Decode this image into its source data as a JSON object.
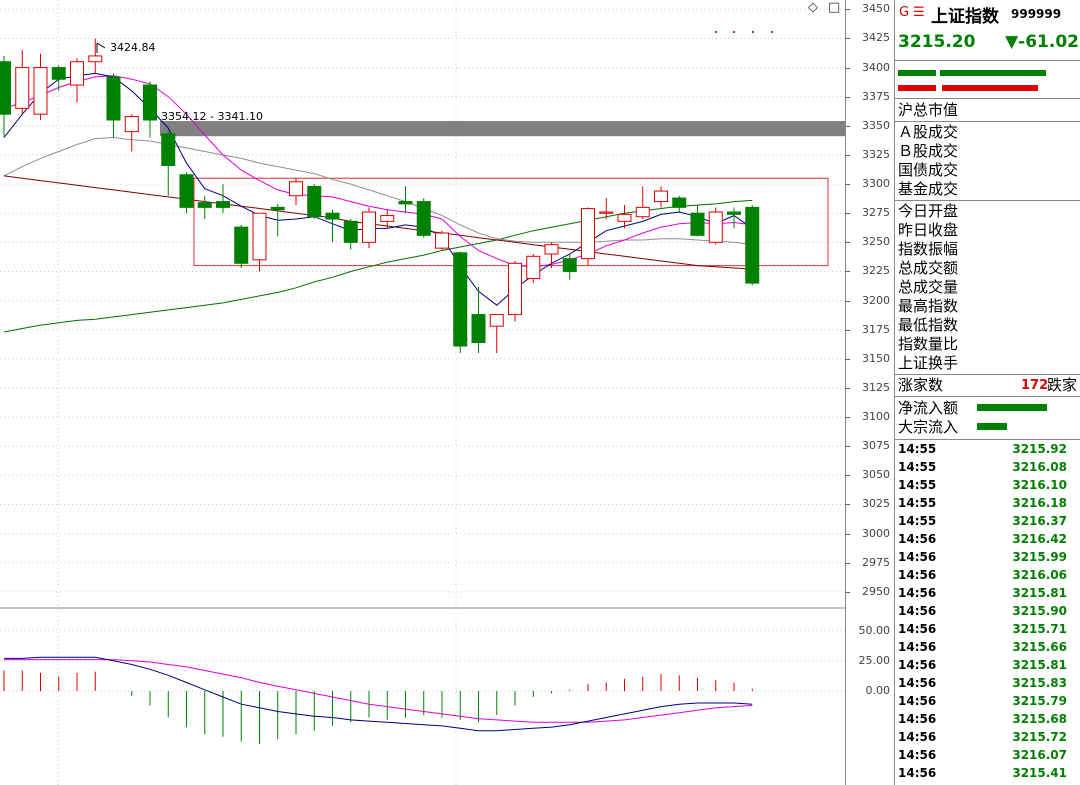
{
  "header": {
    "g_mark": "G",
    "menu_mark": "☰",
    "index_name": "上证指数",
    "index_code": "999999",
    "price": "3215.20",
    "change": "▼-61.02",
    "colors": {
      "up": "#e00000",
      "down": "#008000"
    }
  },
  "chart_controls": {
    "diamond": "◇",
    "square": "□"
  },
  "annotations": {
    "high_label": "3424.84",
    "range_label": "3354.12 - 3341.10"
  },
  "price_axis": [
    "3450",
    "3425",
    "3400",
    "3375",
    "3350",
    "3325",
    "3300",
    "3275",
    "3250",
    "3225",
    "3200",
    "3175",
    "3150",
    "3125",
    "3100",
    "3075",
    "3050",
    "3025",
    "3000",
    "2975",
    "2950"
  ],
  "indicator_axis": [
    "50.00",
    "25.00",
    "0.00"
  ],
  "info_labels": {
    "market_cap": "沪总市值",
    "a_turnover": "Ａ股成交",
    "b_turnover": "Ｂ股成交",
    "bond_turnover": "国债成交",
    "fund_turnover": "基金成交",
    "today_open": "今日开盘",
    "prev_close": "昨日收盘",
    "amplitude": "指数振幅",
    "total_amount": "总成交额",
    "total_volume": "总成交量",
    "high": "最高指数",
    "low": "最低指数",
    "volume_ratio": "指数量比",
    "turnover_rate": "上证换手"
  },
  "breadth": {
    "up_label": "涨家数",
    "down_count": "172",
    "down_label": "跌家"
  },
  "flow": {
    "net_inflow": "净流入额",
    "net_inflow_level": 0.7,
    "block_inflow": "大宗流入",
    "block_inflow_level": 0.3
  },
  "ticks": [
    {
      "time": "14:55",
      "value": "3215.92"
    },
    {
      "time": "14:55",
      "value": "3216.08"
    },
    {
      "time": "14:55",
      "value": "3216.10"
    },
    {
      "time": "14:55",
      "value": "3216.18"
    },
    {
      "time": "14:55",
      "value": "3216.37"
    },
    {
      "time": "14:56",
      "value": "3216.42"
    },
    {
      "time": "14:56",
      "value": "3215.99"
    },
    {
      "time": "14:56",
      "value": "3216.06"
    },
    {
      "time": "14:56",
      "value": "3215.81"
    },
    {
      "time": "14:56",
      "value": "3215.90"
    },
    {
      "time": "14:56",
      "value": "3215.71"
    },
    {
      "time": "14:56",
      "value": "3215.66"
    },
    {
      "time": "14:56",
      "value": "3215.81"
    },
    {
      "time": "14:56",
      "value": "3215.83"
    },
    {
      "time": "14:56",
      "value": "3215.79"
    },
    {
      "time": "14:56",
      "value": "3215.68"
    },
    {
      "time": "14:56",
      "value": "3215.72"
    },
    {
      "time": "14:56",
      "value": "3216.07"
    },
    {
      "time": "14:56",
      "value": "3215.41"
    }
  ],
  "chart_data": {
    "type": "candlestick",
    "y_range": [
      2937,
      3458
    ],
    "resistance_band": [
      3341.1,
      3354.12
    ],
    "box_range": [
      3230,
      3305
    ],
    "candles": [
      {
        "o": 3405,
        "h": 3410,
        "l": 3340,
        "c": 3360
      },
      {
        "o": 3365,
        "h": 3415,
        "l": 3360,
        "c": 3400
      },
      {
        "o": 3360,
        "h": 3412,
        "l": 3355,
        "c": 3400
      },
      {
        "o": 3400,
        "h": 3402,
        "l": 3380,
        "c": 3390
      },
      {
        "o": 3385,
        "h": 3408,
        "l": 3370,
        "c": 3405
      },
      {
        "o": 3405,
        "h": 3425,
        "l": 3395,
        "c": 3410
      },
      {
        "o": 3392,
        "h": 3395,
        "l": 3340,
        "c": 3355
      },
      {
        "o": 3345,
        "h": 3360,
        "l": 3328,
        "c": 3358
      },
      {
        "o": 3385,
        "h": 3388,
        "l": 3340,
        "c": 3355
      },
      {
        "o": 3343,
        "h": 3345,
        "l": 3290,
        "c": 3316
      },
      {
        "o": 3308,
        "h": 3310,
        "l": 3275,
        "c": 3280
      },
      {
        "o": 3284,
        "h": 3290,
        "l": 3270,
        "c": 3280
      },
      {
        "o": 3285,
        "h": 3300,
        "l": 3275,
        "c": 3280
      },
      {
        "o": 3263,
        "h": 3265,
        "l": 3228,
        "c": 3232
      },
      {
        "o": 3235,
        "h": 3275,
        "l": 3225,
        "c": 3275
      },
      {
        "o": 3280,
        "h": 3283,
        "l": 3255,
        "c": 3278
      },
      {
        "o": 3290,
        "h": 3305,
        "l": 3282,
        "c": 3302
      },
      {
        "o": 3298,
        "h": 3300,
        "l": 3270,
        "c": 3272
      },
      {
        "o": 3275,
        "h": 3278,
        "l": 3250,
        "c": 3270
      },
      {
        "o": 3268,
        "h": 3270,
        "l": 3244,
        "c": 3250
      },
      {
        "o": 3250,
        "h": 3280,
        "l": 3245,
        "c": 3276
      },
      {
        "o": 3268,
        "h": 3278,
        "l": 3262,
        "c": 3273
      },
      {
        "o": 3285,
        "h": 3298,
        "l": 3275,
        "c": 3283
      },
      {
        "o": 3285,
        "h": 3288,
        "l": 3254,
        "c": 3256
      },
      {
        "o": 3245,
        "h": 3260,
        "l": 3243,
        "c": 3258
      },
      {
        "o": 3241,
        "h": 3242,
        "l": 3155,
        "c": 3161
      },
      {
        "o": 3188,
        "h": 3212,
        "l": 3155,
        "c": 3164
      },
      {
        "o": 3178,
        "h": 3185,
        "l": 3155,
        "c": 3188
      },
      {
        "o": 3188,
        "h": 3234,
        "l": 3182,
        "c": 3232
      },
      {
        "o": 3219,
        "h": 3240,
        "l": 3215,
        "c": 3238
      },
      {
        "o": 3240,
        "h": 3250,
        "l": 3228,
        "c": 3248
      },
      {
        "o": 3236,
        "h": 3240,
        "l": 3218,
        "c": 3225
      },
      {
        "o": 3236,
        "h": 3280,
        "l": 3230,
        "c": 3279
      },
      {
        "o": 3275,
        "h": 3288,
        "l": 3270,
        "c": 3276
      },
      {
        "o": 3268,
        "h": 3282,
        "l": 3262,
        "c": 3274
      },
      {
        "o": 3272,
        "h": 3298,
        "l": 3270,
        "c": 3280
      },
      {
        "o": 3285,
        "h": 3298,
        "l": 3280,
        "c": 3294
      },
      {
        "o": 3288,
        "h": 3290,
        "l": 3275,
        "c": 3280
      },
      {
        "o": 3275,
        "h": 3282,
        "l": 3255,
        "c": 3256
      },
      {
        "o": 3250,
        "h": 3280,
        "l": 3248,
        "c": 3276
      },
      {
        "o": 3276,
        "h": 3280,
        "l": 3262,
        "c": 3274
      },
      {
        "o": 3280,
        "h": 3282,
        "l": 3213,
        "c": 3215
      }
    ],
    "ma_fast": [
      3340,
      3360,
      3378,
      3390,
      3393,
      3395,
      3392,
      3380,
      3365,
      3348,
      3318,
      3296,
      3290,
      3281,
      3273,
      3269,
      3270,
      3272,
      3266,
      3260,
      3262,
      3262,
      3265,
      3263,
      3255,
      3229,
      3208,
      3196,
      3210,
      3222,
      3232,
      3240,
      3250,
      3260,
      3264,
      3268,
      3274,
      3276,
      3272,
      3266,
      3273,
      3262
    ],
    "ma_slow": [
      3365,
      3370,
      3376,
      3383,
      3388,
      3392,
      3393,
      3390,
      3386,
      3375,
      3360,
      3342,
      3325,
      3312,
      3303,
      3295,
      3291,
      3290,
      3289,
      3285,
      3281,
      3278,
      3276,
      3274,
      3270,
      3255,
      3243,
      3236,
      3230,
      3229,
      3231,
      3235,
      3240,
      3247,
      3252,
      3258,
      3263,
      3266,
      3267,
      3266,
      3267,
      3265
    ],
    "ma_mid": [
      3307,
      3315,
      3322,
      3328,
      3334,
      3339,
      3340,
      3338,
      3337,
      3334,
      3331,
      3328,
      3325,
      3322,
      3318,
      3315,
      3312,
      3309,
      3304,
      3300,
      3295,
      3290,
      3285,
      3279,
      3273,
      3265,
      3258,
      3253,
      3251,
      3250,
      3250,
      3250,
      3250,
      3251,
      3252,
      3252,
      3253,
      3253,
      3252,
      3251,
      3250,
      3248
    ],
    "ma_long": [
      3173,
      3176,
      3179,
      3181,
      3183,
      3184,
      3186,
      3188,
      3190,
      3192,
      3194,
      3196,
      3198,
      3201,
      3204,
      3207,
      3211,
      3216,
      3220,
      3225,
      3229,
      3233,
      3236,
      3239,
      3243,
      3246,
      3249,
      3252,
      3256,
      3260,
      3263,
      3266,
      3269,
      3272,
      3275,
      3277,
      3279,
      3281,
      3282,
      3283,
      3285,
      3286
    ],
    "ma_trend": [
      3307,
      3305,
      3303,
      3301,
      3299,
      3297,
      3295,
      3293,
      3291,
      3289,
      3287,
      3285,
      3283,
      3281,
      3279,
      3277,
      3275,
      3273,
      3271,
      3268,
      3266,
      3264,
      3262,
      3260,
      3258,
      3256,
      3254,
      3252,
      3250,
      3248,
      3246,
      3244,
      3242,
      3240,
      3238,
      3236,
      3234,
      3232,
      3230,
      3229,
      3228,
      3227
    ],
    "indicator": {
      "y_range": [
        -78,
        68
      ],
      "dif": [
        27,
        27,
        28,
        28,
        28,
        28,
        25,
        22,
        18,
        13,
        7,
        1,
        -5,
        -11,
        -14,
        -17,
        -19,
        -21,
        -22,
        -24,
        -25,
        -26,
        -27,
        -28,
        -29,
        -31,
        -33,
        -33,
        -32,
        -31,
        -30,
        -28,
        -25,
        -22,
        -19,
        -16,
        -13,
        -11,
        -10,
        -10,
        -10,
        -11
      ],
      "dea": [
        26,
        26,
        26,
        26,
        26,
        26,
        26,
        25,
        24,
        22,
        20,
        17,
        14,
        11,
        7,
        4,
        1,
        -2,
        -5,
        -8,
        -11,
        -13,
        -15,
        -17,
        -19,
        -21,
        -23,
        -24,
        -25,
        -26,
        -26,
        -26,
        -26,
        -25,
        -24,
        -22,
        -20,
        -18,
        -16,
        -14,
        -13,
        -12
      ],
      "macd": [
        17,
        17,
        15,
        12,
        15,
        16,
        0,
        -4,
        -12,
        -22,
        -30,
        -36,
        -38,
        -42,
        -44,
        -40,
        -36,
        -33,
        -29,
        -26,
        -22,
        -24,
        -22,
        -20,
        -22,
        -24,
        -26,
        -20,
        -12,
        -5,
        -2,
        1,
        6,
        7,
        10,
        12,
        14,
        13,
        11,
        9,
        7,
        2
      ]
    }
  }
}
